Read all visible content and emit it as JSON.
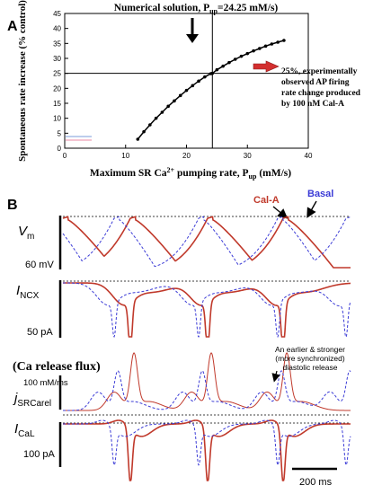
{
  "panel_a": {
    "label": "A",
    "annotation_top": "Numerical solution, P",
    "annotation_top_sub": "up",
    "annotation_top_value": "=24.25 mM/s)",
    "annotation_right_1": "25%, experimentally",
    "annotation_right_2": "observed AP firing",
    "annotation_right_3": "rate change produced",
    "annotation_right_4": "by 100 nM Cal-A",
    "colors": {
      "curve": "#000000",
      "arrow": "#d32f2f",
      "marker_line": "#000000"
    }
  },
  "panel_b": {
    "label": "B",
    "legend_cal": "Cal-A",
    "legend_basal": "Basal",
    "vm_label": "V",
    "vm_sub": "m",
    "vm_scale": "60 mV",
    "incx_label": "I",
    "incx_sub": "NCX",
    "incx_scale": "50 pA",
    "flux_title": "(Ca release flux)",
    "flux_scale": "100 mM/ms",
    "jsr_label": "j",
    "jsr_sub": "SRCarel",
    "ical_label": "I",
    "ical_sub": "CaL",
    "ical_scale": "100 pA",
    "time_scale": "200 ms",
    "annotation_1": "An earlier & stronger",
    "annotation_2": "(more synchronized)",
    "annotation_3": "diastolic release",
    "colors": {
      "cal": "#c0392b",
      "basal": "#3b3bd6"
    }
  },
  "chart_data": [
    {
      "type": "line",
      "x": [
        12,
        13,
        14,
        15,
        16,
        17,
        18,
        19,
        20,
        21,
        22,
        23,
        24,
        24.25,
        25,
        26,
        27,
        28,
        29,
        30,
        31,
        32,
        33,
        34,
        35,
        36
      ],
      "y": [
        3,
        5.5,
        7.8,
        10,
        12,
        14,
        15.8,
        17.6,
        19.3,
        20.9,
        22.4,
        23.8,
        24.9,
        25,
        26.2,
        27.4,
        28.6,
        29.7,
        30.7,
        31.6,
        32.5,
        33.3,
        34.1,
        34.8,
        35.4,
        36
      ],
      "xlabel": "Maximum SR Ca",
      "xlabel_sup": "2+",
      "xlabel_rest": " pumping rate, P",
      "xlabel_sub": "up",
      "xlabel_unit": " (mM/s)",
      "ylabel": "Spontaneous rate increase (% control)",
      "xlim": [
        0,
        40
      ],
      "ylim": [
        0,
        45
      ],
      "xticks": [
        "0",
        "10",
        "20",
        "30",
        "40"
      ],
      "yticks": [
        "0",
        "5",
        "10",
        "15",
        "20",
        "25",
        "30",
        "35",
        "40",
        "45"
      ],
      "reference_lines": {
        "x": 24.25,
        "y": 25
      },
      "grid": false
    },
    {
      "type": "line",
      "series": [
        {
          "name": "Cal-A",
          "color": "#c0392b"
        },
        {
          "name": "Basal",
          "color": "#3b3bd6"
        }
      ]
    }
  ]
}
